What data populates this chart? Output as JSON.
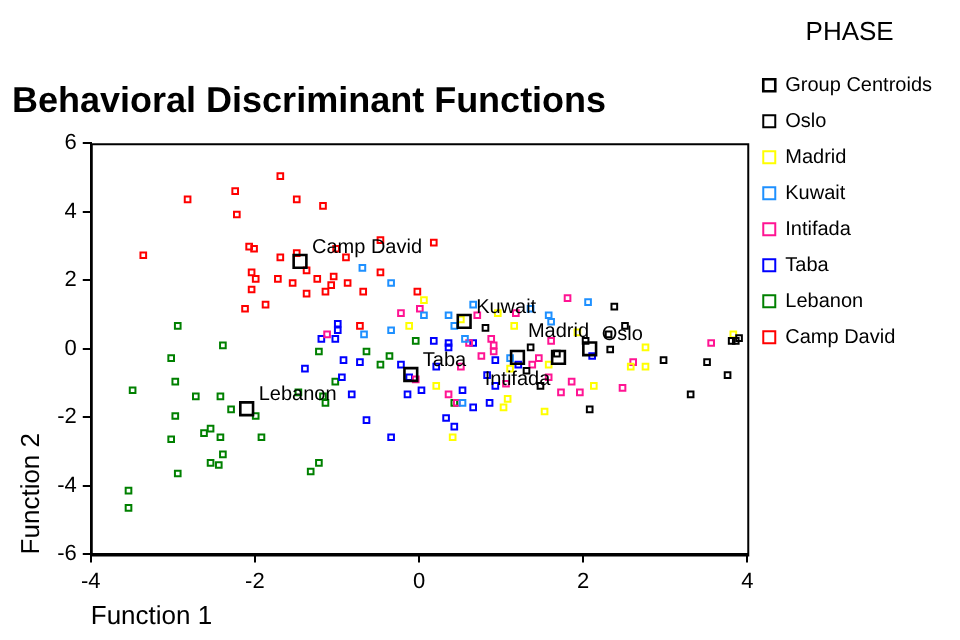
{
  "chart_data": {
    "type": "scatter",
    "title": "Behavioral Discriminant Functions",
    "xlabel": "Function 1",
    "ylabel": "Function 2",
    "legend_title": "PHASE",
    "xlim": [
      -4,
      4
    ],
    "xticks": [
      -4,
      -2,
      0,
      2,
      4
    ],
    "ylim": [
      -6,
      6
    ],
    "yticks": [
      -6,
      -4,
      -2,
      0,
      2,
      4,
      6
    ],
    "grid": false,
    "legend": "right",
    "marker": "square",
    "series": [
      {
        "name": "Group Centroids",
        "color": "#000000",
        "x": [
          2.08,
          1.7,
          0.55,
          1.2,
          -0.1,
          -2.1,
          -1.45
        ],
        "values": [
          0,
          -0.25,
          0.8,
          -0.25,
          -0.75,
          -1.75,
          2.55
        ]
      },
      {
        "name": "Oslo",
        "color": "#000000",
        "x": [
          0.81,
          2.38,
          2.51,
          2.31,
          2.03,
          2.33,
          1.31,
          1.36,
          1.68,
          1.48,
          2.98,
          3.51,
          3.76,
          3.81,
          3.86,
          3.31,
          2.08,
          3.9
        ],
        "values": [
          0.61,
          1.23,
          0.67,
          0.42,
          0.23,
          -0.02,
          -0.64,
          0.04,
          -0.14,
          -1.08,
          -0.33,
          -0.39,
          -0.77,
          0.23,
          0.23,
          -1.33,
          -1.77,
          0.31
        ]
      },
      {
        "name": "Madrid",
        "color": "#ffff00",
        "x": [
          0.06,
          -0.12,
          0.96,
          1.16,
          0.51,
          1.93,
          1.58,
          1.11,
          2.58,
          2.76,
          2.76,
          3.83,
          0.21,
          1.08,
          1.03,
          1.53,
          2.13,
          0.41
        ],
        "values": [
          1.42,
          0.67,
          1.04,
          0.67,
          0.86,
          0.48,
          -0.46,
          -0.58,
          -0.52,
          -0.52,
          0.04,
          0.42,
          -1.08,
          -1.46,
          -1.71,
          -1.83,
          -1.08,
          -2.58
        ]
      },
      {
        "name": "Kuwait",
        "color": "#1e90ff",
        "x": [
          -0.69,
          -0.34,
          -0.34,
          -0.67,
          0.06,
          0.36,
          0.43,
          0.66,
          1.36,
          1.58,
          1.61,
          2.06,
          0.56,
          1.11,
          0.53
        ],
        "values": [
          2.36,
          1.92,
          0.54,
          0.42,
          0.98,
          0.98,
          0.67,
          1.29,
          1.17,
          0.98,
          0.79,
          1.36,
          0.29,
          -0.27,
          -1.58
        ]
      },
      {
        "name": "Intifada",
        "color": "#ff1493",
        "x": [
          -0.22,
          0.01,
          -1.12,
          -0.04,
          0.71,
          1.18,
          1.81,
          0.61,
          0.88,
          0.91,
          1.61,
          1.46,
          1.38,
          0.76,
          0.91,
          0.51,
          1.06,
          1.58,
          1.73,
          1.96,
          1.86,
          2.48,
          2.61,
          3.56,
          0.36,
          0.46
        ],
        "values": [
          1.04,
          1.17,
          0.42,
          -0.89,
          0.98,
          1.04,
          1.48,
          0.17,
          0.29,
          0.1,
          0.23,
          -0.27,
          -0.46,
          -0.21,
          -0.08,
          -0.52,
          -1.02,
          -0.83,
          -1.27,
          -1.27,
          -0.96,
          -1.14,
          -0.39,
          0.17,
          -1.33,
          -1.58
        ]
      },
      {
        "name": "Taba",
        "color": "#0000ff",
        "x": [
          -0.99,
          -0.99,
          -1.19,
          -1.02,
          -0.92,
          -0.72,
          -1.39,
          -0.94,
          -0.22,
          -0.12,
          -0.82,
          -0.14,
          0.03,
          -0.64,
          -0.34,
          0.18,
          0.36,
          0.36,
          0.66,
          0.21,
          0.93,
          0.83,
          0.93,
          0.53,
          0.86,
          0.66,
          1.21,
          2.11,
          0.33,
          0.43
        ],
        "values": [
          0.73,
          0.54,
          0.29,
          0.29,
          -0.33,
          -0.39,
          -0.58,
          -0.83,
          -0.46,
          -0.83,
          -1.33,
          -1.33,
          -1.21,
          -2.08,
          -2.58,
          0.23,
          0.17,
          0.04,
          0.17,
          -0.52,
          -0.33,
          -0.77,
          -1.08,
          -1.21,
          -1.58,
          -1.71,
          -0.46,
          -0.21,
          -2.02,
          -2.27
        ]
      },
      {
        "name": "Lebanon",
        "color": "#008000",
        "x": [
          -2.94,
          -2.39,
          -3.02,
          -2.97,
          -3.49,
          -2.72,
          -2.29,
          -2.42,
          -1.47,
          -1.17,
          -1.14,
          -1.22,
          -0.64,
          -1.02,
          -0.47,
          -0.36,
          -0.04,
          -2.97,
          -3.02,
          -2.62,
          -2.54,
          -2.42,
          -1.99,
          -1.92,
          -2.39,
          -2.54,
          -2.44,
          -2.94,
          -3.54,
          -3.54,
          -1.32,
          -1.22,
          0.43
        ],
        "values": [
          0.67,
          0.1,
          -0.27,
          -0.96,
          -1.21,
          -1.39,
          -1.77,
          -1.39,
          -1.27,
          -1.39,
          -1.58,
          -0.08,
          -0.08,
          -0.96,
          -0.46,
          -0.21,
          0.23,
          -1.96,
          -2.64,
          -2.46,
          -2.33,
          -2.58,
          -1.96,
          -2.58,
          -3.08,
          -3.33,
          -3.39,
          -3.64,
          -4.14,
          -4.64,
          -3.58,
          -3.33,
          -1.58
        ]
      },
      {
        "name": "Camp David",
        "color": "#ff0000",
        "x": [
          -1.69,
          -2.24,
          -2.82,
          -1.49,
          -1.17,
          -2.22,
          -3.36,
          -2.07,
          -2.01,
          -1.69,
          -1.49,
          -1.01,
          -0.89,
          -0.47,
          -1.37,
          -2.04,
          -1.99,
          -1.72,
          -1.54,
          -1.24,
          -1.04,
          -1.07,
          -0.87,
          -0.47,
          -2.04,
          -1.37,
          -1.14,
          -0.68,
          -2.12,
          -1.87,
          -0.02,
          -0.72,
          0.18
        ],
        "values": [
          5.04,
          4.6,
          4.36,
          4.36,
          4.17,
          3.92,
          2.73,
          2.98,
          2.92,
          2.67,
          2.79,
          2.92,
          2.67,
          3.17,
          2.29,
          2.23,
          2.04,
          2.04,
          1.92,
          2.04,
          2.11,
          1.86,
          1.92,
          2.23,
          1.73,
          1.61,
          1.67,
          1.67,
          1.17,
          1.29,
          1.67,
          0.67,
          3.1
        ]
      }
    ],
    "annotations": [
      {
        "text": "Oslo",
        "x": 2.08,
        "y": 0
      },
      {
        "text": "Madrid",
        "x": 1.7,
        "y": -0.25
      },
      {
        "text": "Kuwait",
        "x": 0.55,
        "y": 0.8
      },
      {
        "text": "Intifada",
        "x": 1.2,
        "y": -0.25
      },
      {
        "text": "Taba",
        "x": -0.1,
        "y": -0.75
      },
      {
        "text": "Lebanon",
        "x": -2.1,
        "y": -1.75
      },
      {
        "text": "Camp David",
        "x": -1.45,
        "y": 2.55
      }
    ]
  }
}
